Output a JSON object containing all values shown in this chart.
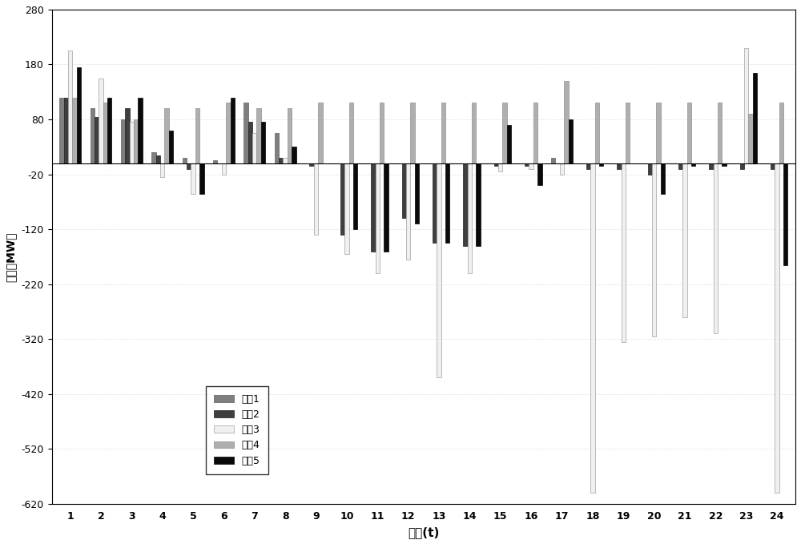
{
  "title": "",
  "xlabel": "时间(t)",
  "ylabel": "偏差（MW）",
  "ylim": [
    -620,
    280
  ],
  "yticks": [
    280,
    180,
    80,
    -20,
    -120,
    -220,
    -320,
    -420,
    -520,
    -620
  ],
  "time_labels": [
    "1",
    "2",
    "3",
    "4",
    "5",
    "6",
    "7",
    "8",
    "9",
    "10",
    "11",
    "12",
    "13",
    "14",
    "15",
    "16",
    "17",
    "18",
    "19",
    "20",
    "21",
    "22",
    "23",
    "24"
  ],
  "series_names": [
    "方梅1",
    "方梅2",
    "方梅3",
    "方梅4",
    "方梅5"
  ],
  "colors": [
    "#7f7f7f",
    "#3f3f3f",
    "#f0f0f0",
    "#afafaf",
    "#0a0a0a"
  ],
  "edgecolors": [
    "#5f5f5f",
    "#1f1f1f",
    "#a0a0a0",
    "#8f8f8f",
    "#000000"
  ],
  "data": {
    "方梅1": [
      120,
      100,
      80,
      20,
      10,
      5,
      110,
      55,
      0,
      0,
      0,
      0,
      0,
      0,
      0,
      0,
      10,
      0,
      0,
      0,
      0,
      0,
      0,
      0
    ],
    "方梅2": [
      120,
      85,
      100,
      15,
      -10,
      0,
      75,
      10,
      -5,
      -130,
      -160,
      -100,
      -145,
      -150,
      -5,
      -5,
      0,
      -10,
      -10,
      -20,
      -10,
      -10,
      -10,
      -10
    ],
    "方梅3": [
      205,
      155,
      75,
      -25,
      -55,
      -20,
      55,
      10,
      -130,
      -165,
      -200,
      -175,
      -390,
      -200,
      -15,
      -10,
      -20,
      -600,
      -325,
      -315,
      -280,
      -310,
      210,
      -600
    ],
    "方梅4": [
      120,
      110,
      80,
      100,
      100,
      110,
      100,
      100,
      110,
      110,
      110,
      110,
      110,
      110,
      110,
      110,
      150,
      110,
      110,
      110,
      110,
      110,
      90,
      110
    ],
    "方梅5": [
      175,
      120,
      120,
      60,
      -55,
      120,
      75,
      30,
      0,
      -120,
      -160,
      -110,
      -145,
      -150,
      70,
      -40,
      80,
      -5,
      0,
      -55,
      -5,
      -5,
      165,
      -185
    ]
  }
}
